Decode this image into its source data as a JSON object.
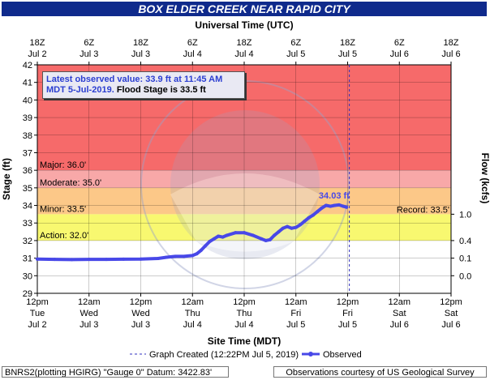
{
  "title": "BOX ELDER CREEK NEAR RAPID CITY",
  "info_line1": "Latest observed value: 33.9 ft at 11:45 AM",
  "info_line2a": "MDT 5-Jul-2019.",
  "info_line2b": "Flood Stage is 33.5 ft",
  "footer_left": "BNRS2(plotting HGIRG) \"Gauge 0\" Datum: 3422.83'",
  "footer_right": "Observations courtesy of US Geological Survey",
  "colors": {
    "title_bg": "#0f2a8c",
    "major": "#f66a6a",
    "moderate": "#f8a8a8",
    "minor": "#fcc888",
    "action": "#f8f870",
    "above": "#dc8ce8",
    "observed": "#4848e8",
    "watermark": "#9aa3c8"
  },
  "chart_data": {
    "type": "line",
    "title": "BOX ELDER CREEK NEAR RAPID CITY",
    "xlabel_top": "Universal Time (UTC)",
    "xlabel_bottom": "Site Time (MDT)",
    "ylabel": "Stage (ft)",
    "ylabel_right": "Flow (kcfs)",
    "ylim": [
      29,
      42
    ],
    "y_ticks": [
      29,
      30,
      31,
      32,
      33,
      34,
      35,
      36,
      37,
      38,
      39,
      40,
      41,
      42
    ],
    "top_ticks": [
      {
        "t": "18Z",
        "d": "Jul 2"
      },
      {
        "t": "6Z",
        "d": "Jul 3"
      },
      {
        "t": "18Z",
        "d": "Jul 3"
      },
      {
        "t": "6Z",
        "d": "Jul 4"
      },
      {
        "t": "18Z",
        "d": "Jul 4"
      },
      {
        "t": "6Z",
        "d": "Jul 5"
      },
      {
        "t": "18Z",
        "d": "Jul 5"
      },
      {
        "t": "6Z",
        "d": "Jul 6"
      },
      {
        "t": "18Z",
        "d": "Jul 6"
      }
    ],
    "bottom_ticks": [
      {
        "t": "12pm",
        "w": "Tue",
        "d": "Jul 2"
      },
      {
        "t": "12am",
        "w": "Wed",
        "d": "Jul 3"
      },
      {
        "t": "12pm",
        "w": "Wed",
        "d": "Jul 3"
      },
      {
        "t": "12am",
        "w": "Thu",
        "d": "Jul 4"
      },
      {
        "t": "12pm",
        "w": "Thu",
        "d": "Jul 4"
      },
      {
        "t": "12am",
        "w": "Fri",
        "d": "Jul 5"
      },
      {
        "t": "12pm",
        "w": "Fri",
        "d": "Jul 5"
      },
      {
        "t": "12am",
        "w": "Sat",
        "d": "Jul 6"
      },
      {
        "t": "12pm",
        "w": "Sat",
        "d": "Jul 6"
      }
    ],
    "flow_ticks": [
      {
        "stage": 33.5,
        "label": "1.0"
      },
      {
        "stage": 32.0,
        "label": "0.4"
      },
      {
        "stage": 31.0,
        "label": "0.1"
      },
      {
        "stage": 30.0,
        "label": "0.0"
      }
    ],
    "flood_categories": [
      {
        "name": "Major",
        "label": "Major: 36.0'",
        "from": 36.0,
        "to": 42.0,
        "color": "#f66a6a"
      },
      {
        "name": "Moderate",
        "label": "Moderate: 35.0'",
        "from": 35.0,
        "to": 36.0,
        "color": "#f8a8a8"
      },
      {
        "name": "Minor",
        "label": "Minor: 33.5'",
        "from": 33.5,
        "to": 35.0,
        "color": "#fcc888"
      },
      {
        "name": "Action",
        "label": "Action: 32.0'",
        "from": 32.0,
        "to": 33.5,
        "color": "#f8f870"
      }
    ],
    "record_label": "Record: 33.5'",
    "peak_label": "34.03 ft",
    "legend": {
      "created": "Graph Created (12:22PM Jul 5, 2019)",
      "observed": "Observed"
    },
    "series": [
      {
        "name": "Observed",
        "x_hours_from_jul2_12pm": [
          0,
          4,
          8,
          12,
          16,
          20,
          24,
          28,
          30,
          32,
          34,
          36,
          37,
          38,
          39,
          40,
          41,
          42,
          43,
          44,
          46,
          48,
          50,
          52,
          53,
          54,
          55,
          56,
          57,
          58,
          59,
          60,
          61,
          62,
          63,
          64,
          65,
          66,
          67,
          68,
          69,
          70,
          71,
          71.75
        ],
        "y": [
          30.95,
          30.93,
          30.92,
          30.93,
          30.93,
          30.94,
          30.95,
          30.98,
          31.05,
          31.1,
          31.1,
          31.15,
          31.25,
          31.45,
          31.7,
          31.95,
          32.1,
          32.25,
          32.2,
          32.3,
          32.45,
          32.45,
          32.3,
          32.1,
          32.0,
          32.05,
          32.3,
          32.5,
          32.7,
          32.8,
          32.7,
          32.75,
          32.9,
          33.1,
          33.3,
          33.45,
          33.65,
          33.85,
          34.0,
          33.95,
          34.0,
          34.03,
          33.95,
          33.9
        ]
      }
    ],
    "now_x_hours_from_jul2_12pm": 72.4,
    "x_range_hours": [
      0,
      96
    ]
  }
}
